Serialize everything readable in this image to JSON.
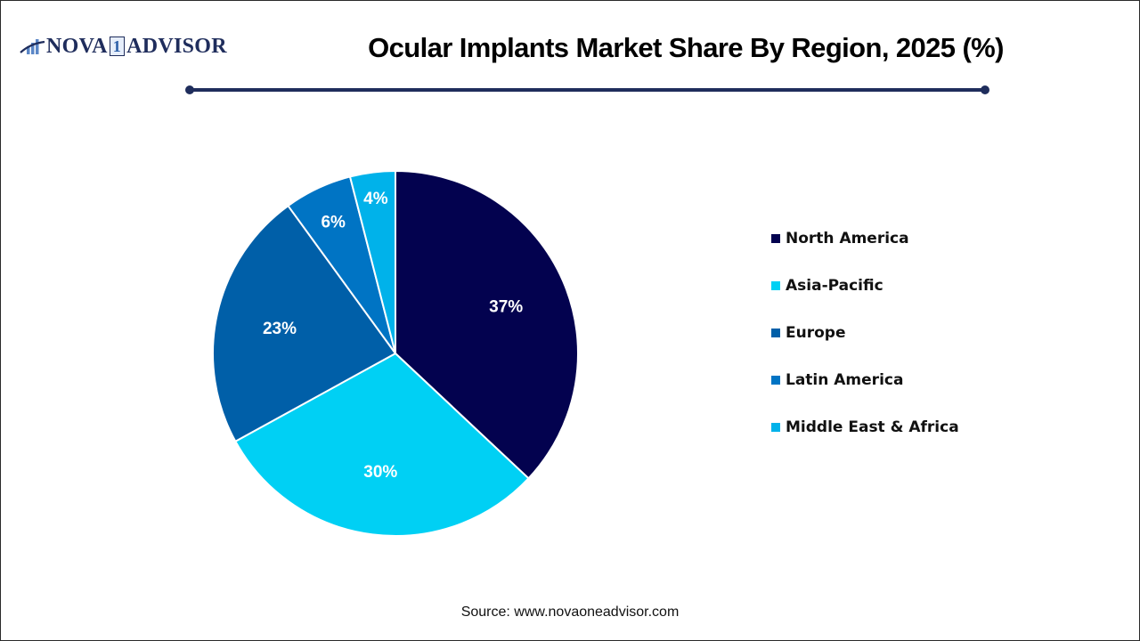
{
  "header": {
    "logo_text_left": "NOVA",
    "logo_text_one": "1",
    "logo_text_right": "ADVISOR",
    "title": "Ocular Implants Market Share By Region, 2025 (%)"
  },
  "footer": {
    "source": "Source: www.novaoneadvisor.com"
  },
  "colors": {
    "north_america": "#03024f",
    "asia_pacific": "#00d0f4",
    "europe": "#005fa8",
    "latin_america": "#0074c4",
    "middle_east_africa": "#00b2ea",
    "accent_rule": "#1f2d5c"
  },
  "legend": {
    "items": [
      {
        "label": "North America",
        "color": "#03024f"
      },
      {
        "label": "Asia-Pacific",
        "color": "#00d0f4"
      },
      {
        "label": "Europe",
        "color": "#005fa8"
      },
      {
        "label": "Latin America",
        "color": "#0074c4"
      },
      {
        "label": "Middle East & Africa",
        "color": "#00b2ea"
      }
    ]
  },
  "chart_data": {
    "type": "pie",
    "title": "Ocular Implants Market Share By Region, 2025 (%)",
    "categories": [
      "North America",
      "Asia-Pacific",
      "Europe",
      "Latin America",
      "Middle East & Africa"
    ],
    "values": [
      37,
      30,
      23,
      6,
      4
    ],
    "labels": [
      "37%",
      "30%",
      "23%",
      "6%",
      "4%"
    ],
    "colors": [
      "#03024f",
      "#00d0f4",
      "#005fa8",
      "#0074c4",
      "#00b2ea"
    ],
    "start_angle": "12 o'clock",
    "direction": "clockwise",
    "legend_position": "right",
    "source": "Source: www.novaoneadvisor.com"
  }
}
